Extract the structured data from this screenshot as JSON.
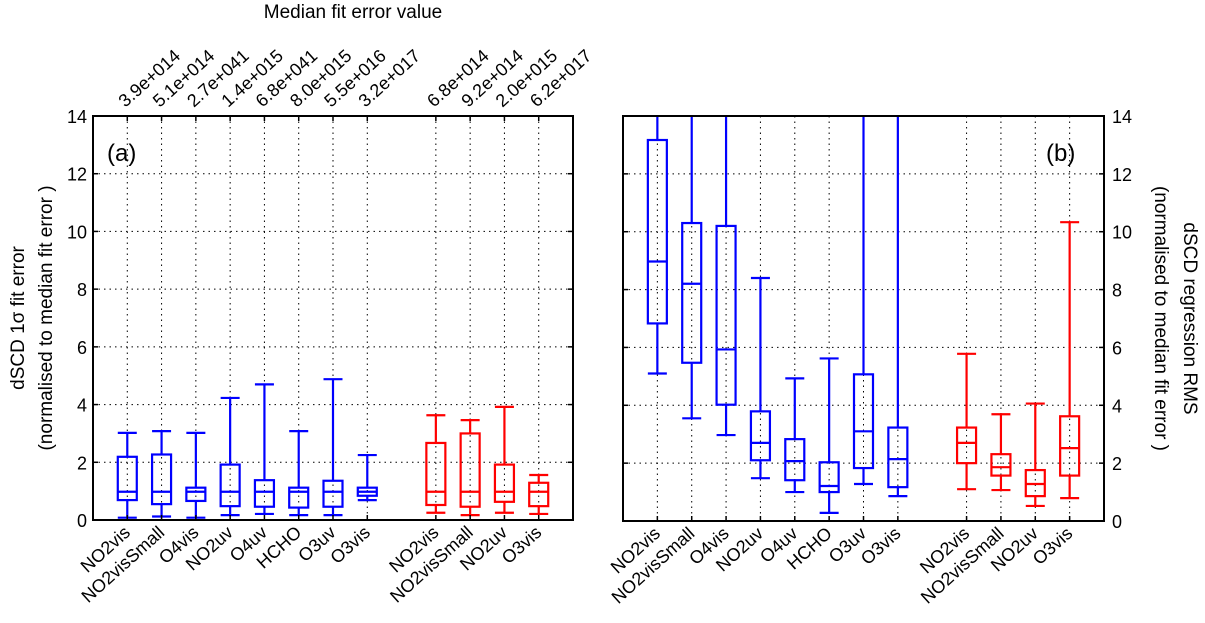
{
  "chart_data": [
    {
      "type": "box",
      "panel_label": "(a)",
      "top_title": "Median fit error value",
      "ylabel": [
        "dSCD 1σ fit error",
        "(normalised to median fit error )"
      ],
      "ylim": [
        0,
        14
      ],
      "yticks": [
        "0",
        "2",
        "4",
        "6",
        "8",
        "10",
        "12",
        "14"
      ],
      "grid": true,
      "colors": {
        "group1": "#0000ff",
        "group2": "#ff0000"
      },
      "boxes": [
        {
          "label": "NO2vis",
          "median_fit_error": "3.9e+014",
          "group": "group1",
          "low": 0.08,
          "q1": 0.69,
          "median": 0.98,
          "q3": 2.19,
          "high": 3.02
        },
        {
          "label": "NO2visSmall",
          "median_fit_error": "5.1e+014",
          "group": "group1",
          "low": 0.12,
          "q1": 0.55,
          "median": 0.98,
          "q3": 2.27,
          "high": 3.08
        },
        {
          "label": "O4vis",
          "median_fit_error": "2.7e+041",
          "group": "group1",
          "low": 0.08,
          "q1": 0.66,
          "median": 0.98,
          "q3": 1.12,
          "high": 3.02
        },
        {
          "label": "NO2uv",
          "median_fit_error": "1.4e+015",
          "group": "group1",
          "low": 0.17,
          "q1": 0.48,
          "median": 0.98,
          "q3": 1.92,
          "high": 4.23
        },
        {
          "label": "O4uv",
          "median_fit_error": "6.8e+041",
          "group": "group1",
          "low": 0.21,
          "q1": 0.46,
          "median": 0.98,
          "q3": 1.38,
          "high": 4.7
        },
        {
          "label": "HCHO",
          "median_fit_error": "8.0e+015",
          "group": "group1",
          "low": 0.17,
          "q1": 0.43,
          "median": 0.98,
          "q3": 1.12,
          "high": 3.08
        },
        {
          "label": "O3uv",
          "median_fit_error": "5.5e+016",
          "group": "group1",
          "low": 0.17,
          "q1": 0.46,
          "median": 0.98,
          "q3": 1.36,
          "high": 4.88
        },
        {
          "label": "O3vis",
          "median_fit_error": "3.2e+017",
          "group": "group1",
          "low": 0.69,
          "q1": 0.84,
          "median": 0.98,
          "q3": 1.12,
          "high": 2.25
        },
        {
          "label": "NO2vis",
          "median_fit_error": "6.8e+014",
          "group": "group2",
          "low": 0.25,
          "q1": 0.52,
          "median": 0.98,
          "q3": 2.67,
          "high": 3.63
        },
        {
          "label": "NO2visSmall",
          "median_fit_error": "9.2e+014",
          "group": "group2",
          "low": 0.17,
          "q1": 0.46,
          "median": 0.98,
          "q3": 3.0,
          "high": 3.46
        },
        {
          "label": "NO2uv",
          "median_fit_error": "2.0e+015",
          "group": "group2",
          "low": 0.25,
          "q1": 0.63,
          "median": 0.98,
          "q3": 1.92,
          "high": 3.92
        },
        {
          "label": "O3vis",
          "median_fit_error": "6.2e+017",
          "group": "group2",
          "low": 0.21,
          "q1": 0.48,
          "median": 0.98,
          "q3": 1.29,
          "high": 1.56
        }
      ]
    },
    {
      "type": "box",
      "panel_label": "(b)",
      "ylabel": [
        "dSCD regression  RMS",
        "(normalised to median fit error )"
      ],
      "ylim": [
        0,
        14
      ],
      "yticks": [
        "0",
        "2",
        "4",
        "6",
        "8",
        "10",
        "12",
        "14"
      ],
      "grid": true,
      "colors": {
        "group1": "#0000ff",
        "group2": "#ff0000"
      },
      "boxes": [
        {
          "label": "NO2vis",
          "group": "group1",
          "low": 5.1,
          "q1": 6.83,
          "median": 8.97,
          "q3": 13.17,
          "high": 14
        },
        {
          "label": "NO2visSmall",
          "group": "group1",
          "low": 3.55,
          "q1": 5.47,
          "median": 8.2,
          "q3": 10.3,
          "high": 14
        },
        {
          "label": "O4vis",
          "group": "group1",
          "low": 2.97,
          "q1": 4.02,
          "median": 5.93,
          "q3": 10.2,
          "high": 14
        },
        {
          "label": "NO2uv",
          "group": "group1",
          "low": 1.48,
          "q1": 2.1,
          "median": 2.7,
          "q3": 3.79,
          "high": 8.4
        },
        {
          "label": "O4uv",
          "group": "group1",
          "low": 1.0,
          "q1": 1.41,
          "median": 2.07,
          "q3": 2.83,
          "high": 4.93
        },
        {
          "label": "HCHO",
          "group": "group1",
          "low": 0.28,
          "q1": 1.0,
          "median": 1.21,
          "q3": 2.03,
          "high": 5.62
        },
        {
          "label": "O3uv",
          "group": "group1",
          "low": 1.28,
          "q1": 1.83,
          "median": 3.1,
          "q3": 5.07,
          "high": 14
        },
        {
          "label": "O3vis",
          "group": "group1",
          "low": 0.86,
          "q1": 1.17,
          "median": 2.14,
          "q3": 3.23,
          "high": 14
        },
        {
          "label": "NO2vis",
          "group": "group2",
          "low": 1.1,
          "q1": 2.0,
          "median": 2.7,
          "q3": 3.23,
          "high": 5.78
        },
        {
          "label": "NO2visSmall",
          "group": "group2",
          "low": 1.07,
          "q1": 1.57,
          "median": 1.86,
          "q3": 2.31,
          "high": 3.69
        },
        {
          "label": "NO2uv",
          "group": "group2",
          "low": 0.52,
          "q1": 0.86,
          "median": 1.28,
          "q3": 1.76,
          "high": 4.06
        },
        {
          "label": "O3vis",
          "group": "group2",
          "low": 0.79,
          "q1": 1.57,
          "median": 2.52,
          "q3": 3.62,
          "high": 10.33
        }
      ]
    }
  ]
}
